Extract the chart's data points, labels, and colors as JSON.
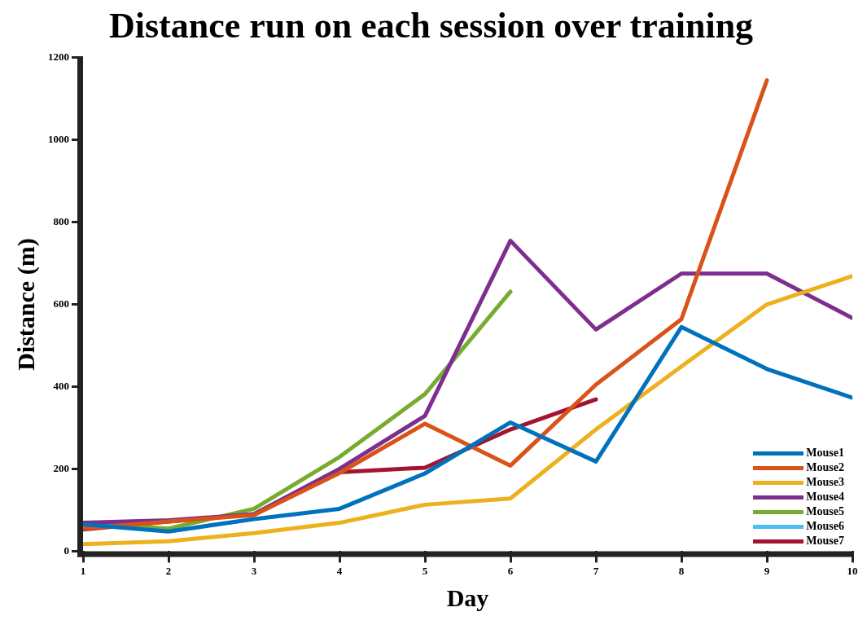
{
  "chart_data": {
    "type": "line",
    "title": "Distance run on each session over training",
    "xlabel": "Day",
    "ylabel": "Distance (m)",
    "x": [
      1,
      2,
      3,
      4,
      5,
      6,
      7,
      8,
      9,
      10
    ],
    "xlim": [
      1,
      10
    ],
    "xticks": [
      1,
      2,
      3,
      4,
      5,
      6,
      7,
      8,
      9,
      10
    ],
    "ylim": [
      0,
      1200
    ],
    "yticks": [
      0,
      200,
      400,
      600,
      800,
      1000,
      1200
    ],
    "grid": false,
    "legend": "bottom right",
    "marker": "none",
    "line_style": "solid",
    "series": [
      {
        "name": "Mouse1",
        "color": "#0072bd",
        "values": [
          65,
          48,
          78,
          103,
          189,
          313,
          218,
          545,
          443,
          373
        ]
      },
      {
        "name": "Mouse2",
        "color": "#d95319",
        "values": [
          55,
          72,
          88,
          190,
          310,
          208,
          405,
          564,
          1145,
          null
        ]
      },
      {
        "name": "Mouse3",
        "color": "#edb120",
        "values": [
          17,
          24,
          44,
          69,
          113,
          128,
          296,
          449,
          600,
          669
        ]
      },
      {
        "name": "Mouse4",
        "color": "#7e2f8e",
        "values": [
          69,
          75,
          90,
          200,
          329,
          755,
          539,
          675,
          675,
          567
        ]
      },
      {
        "name": "Mouse5",
        "color": "#77ac30",
        "values": [
          69,
          55,
          103,
          229,
          382,
          631,
          null,
          null,
          null,
          null
        ]
      },
      {
        "name": "Mouse6",
        "color": "#4dbeee",
        "values": [
          null,
          null,
          null,
          null,
          null,
          null,
          null,
          null,
          null,
          null
        ]
      },
      {
        "name": "Mouse7",
        "color": "#a2142f",
        "values": [
          53,
          72,
          90,
          192,
          203,
          296,
          369,
          null,
          null,
          null
        ]
      }
    ]
  }
}
